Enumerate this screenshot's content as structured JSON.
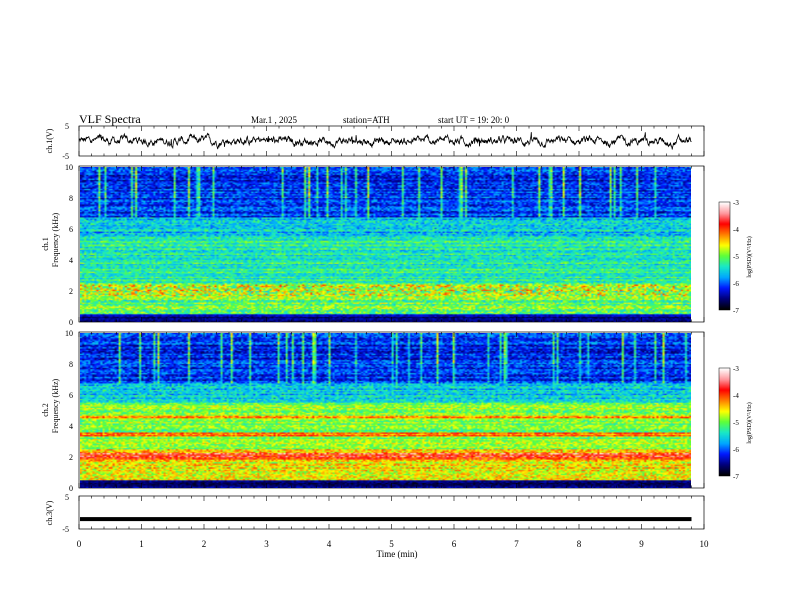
{
  "header": {
    "title": "VLF  Spectra",
    "date": "Mar.1  , 2025",
    "station": "station=ATH",
    "start_ut": "start  UT  =   19: 20: 0"
  },
  "colors": {
    "colormap": [
      "#000000",
      "#00007a",
      "#0018ff",
      "#00a8ff",
      "#18e8c8",
      "#5cff3a",
      "#ffff00",
      "#ff7f00",
      "#ff0000",
      "#ff9aa0",
      "#ffffff"
    ]
  },
  "chart_data": [
    {
      "type": "line",
      "name": "ch1-voltage",
      "ylabel": "ch.1(V)",
      "ylim": [
        -5,
        5
      ],
      "y_ticks": [
        "5",
        "-5"
      ],
      "xlim": [
        0,
        10
      ],
      "mean_value": 0,
      "end_x_min": 9.8
    },
    {
      "type": "heatmap",
      "name": "ch1-spectrogram",
      "ylabel_channel": "ch.1",
      "ylabel": "Frequency  (kHz)",
      "ylim": [
        0,
        10
      ],
      "y_ticks": [
        "10",
        "8",
        "6",
        "4",
        "2",
        "0"
      ],
      "xlim": [
        0,
        10
      ],
      "end_x_min": 9.8,
      "colorbar": {
        "label": "log(PSD)(V²/Hz)",
        "range": [
          -7,
          -3
        ],
        "ticks": [
          "-3",
          "-4",
          "-5",
          "-6",
          "-7"
        ]
      }
    },
    {
      "type": "heatmap",
      "name": "ch2-spectrogram",
      "ylabel_channel": "ch.2",
      "ylabel": "Frequency  (kHz)",
      "ylim": [
        0,
        10
      ],
      "y_ticks": [
        "10",
        "8",
        "6",
        "4",
        "2",
        "0"
      ],
      "xlim": [
        0,
        10
      ],
      "end_x_min": 9.8,
      "colorbar": {
        "label": "log(PSD)(V²/Hz)",
        "range": [
          -7,
          -3
        ],
        "ticks": [
          "-3",
          "-4",
          "-5",
          "-6",
          "-7"
        ]
      }
    },
    {
      "type": "line",
      "name": "ch3-voltage",
      "ylabel": "ch.3(V)",
      "ylim": [
        -5,
        5
      ],
      "y_ticks": [
        "5",
        "-5"
      ],
      "xlim": [
        0,
        10
      ],
      "mean_value": -2,
      "end_x_min": 9.8,
      "xlabel": "Time  (min)",
      "x_ticks": [
        "0",
        "1",
        "2",
        "3",
        "4",
        "5",
        "6",
        "7",
        "8",
        "9",
        "10"
      ]
    }
  ]
}
